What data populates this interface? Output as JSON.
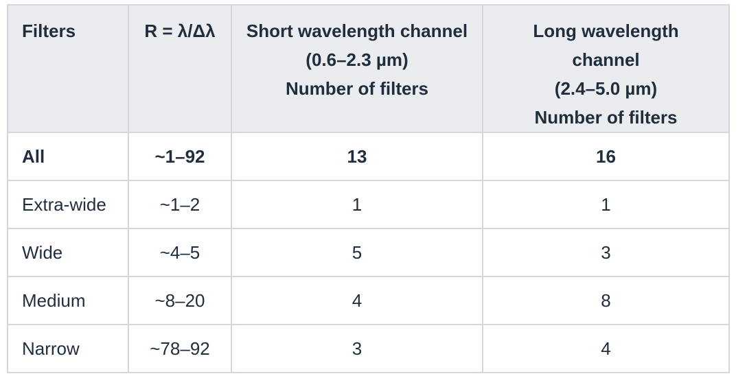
{
  "table": {
    "headers": [
      {
        "lines": [
          "Filters"
        ]
      },
      {
        "lines": [
          "R = λ/Δλ"
        ]
      },
      {
        "lines": [
          "Short wavelength channel",
          "(0.6–2.3 µm)",
          "Number of filters"
        ]
      },
      {
        "lines": [
          "Long wavelength channel",
          "(2.4–5.0 µm)",
          "Number of filters"
        ]
      }
    ],
    "rows": [
      {
        "cells": [
          "All",
          "~1–92",
          "13",
          "16"
        ],
        "bold": true
      },
      {
        "cells": [
          "Extra-wide",
          "~1–2",
          "1",
          "1"
        ],
        "bold": false
      },
      {
        "cells": [
          "Wide",
          "~4–5",
          "5",
          "3"
        ],
        "bold": false
      },
      {
        "cells": [
          "Medium",
          "~8–20",
          "4",
          "8"
        ],
        "bold": false
      },
      {
        "cells": [
          "Narrow",
          "~78–92",
          "3",
          "4"
        ],
        "bold": false
      }
    ]
  }
}
